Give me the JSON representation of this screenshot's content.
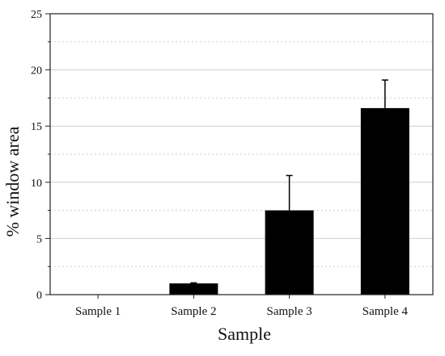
{
  "chart_data": {
    "type": "bar",
    "title": "",
    "xlabel": "Sample",
    "ylabel": "% window area",
    "categories": [
      "Sample 1",
      "Sample 2",
      "Sample 3",
      "Sample 4"
    ],
    "values": [
      0,
      1.0,
      7.5,
      16.6
    ],
    "error_upper": [
      0,
      0.05,
      3.1,
      2.5
    ],
    "ylim": [
      0,
      25
    ],
    "yticks": [
      0,
      5,
      10,
      15,
      20,
      25
    ],
    "grid": true,
    "legend": "none",
    "bar_color": "#000000",
    "grid_color": "#cfcfcf"
  }
}
